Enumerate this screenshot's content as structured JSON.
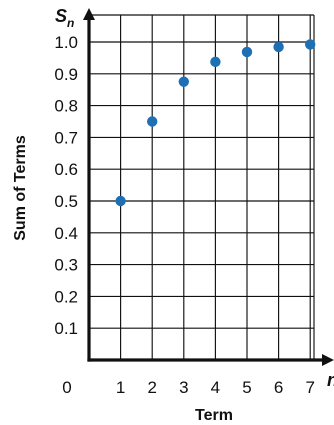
{
  "chart_data": {
    "type": "scatter",
    "title": "",
    "xlabel": "Term",
    "ylabel": "Sum of Terms",
    "x_axis_var": "n",
    "y_axis_var": "S",
    "y_axis_var_sub": "n",
    "x": [
      1,
      2,
      3,
      4,
      5,
      6,
      7
    ],
    "y": [
      0.5,
      0.75,
      0.875,
      0.9375,
      0.96875,
      0.984375,
      0.9921875
    ],
    "xlim": [
      0,
      7
    ],
    "ylim": [
      0,
      1.0
    ],
    "x_ticks": [
      "0",
      "1",
      "2",
      "3",
      "4",
      "5",
      "6",
      "7"
    ],
    "y_ticks": [
      "0.1",
      "0.2",
      "0.3",
      "0.4",
      "0.5",
      "0.6",
      "0.7",
      "0.8",
      "0.9",
      "1.0"
    ],
    "grid": true,
    "point_color": "#1F6FB5",
    "grid_color": "#111111",
    "axis_color": "#111111"
  }
}
